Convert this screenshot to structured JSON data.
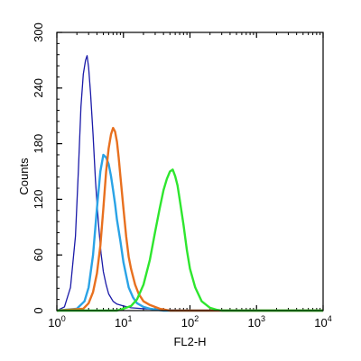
{
  "chart_data": {
    "type": "line",
    "title": "",
    "xlabel": "FL2-H",
    "ylabel": "Counts",
    "x_scale": "log",
    "xlim": [
      1,
      10000
    ],
    "ylim": [
      0,
      300
    ],
    "x_ticks": [
      {
        "base": "10",
        "exp": "0"
      },
      {
        "base": "10",
        "exp": "1"
      },
      {
        "base": "10",
        "exp": "2"
      },
      {
        "base": "10",
        "exp": "3"
      },
      {
        "base": "10",
        "exp": "4"
      }
    ],
    "y_ticks": [
      "0",
      "60",
      "120",
      "180",
      "240",
      "300"
    ],
    "grid": false,
    "legend": "none",
    "series": [
      {
        "color": "#1a1aa8",
        "x": [
          1.0,
          1.3,
          1.6,
          1.9,
          2.1,
          2.3,
          2.5,
          2.7,
          2.85,
          3.0,
          3.2,
          3.5,
          3.8,
          4.2,
          4.6,
          5.0,
          5.5,
          6.0,
          7.0,
          8.0,
          10,
          13,
          20,
          40,
          100,
          10000
        ],
        "y": [
          0,
          4,
          25,
          80,
          150,
          220,
          255,
          270,
          275,
          262,
          235,
          190,
          140,
          95,
          62,
          42,
          28,
          18,
          10,
          7,
          5,
          3,
          2,
          1,
          0,
          0
        ]
      },
      {
        "color": "#2aa3e6",
        "x": [
          1.0,
          2.0,
          2.6,
          3.0,
          3.5,
          4.0,
          4.5,
          5.0,
          5.5,
          6.0,
          6.5,
          7.0,
          7.5,
          8.0,
          9.0,
          10,
          11,
          12,
          14,
          16,
          20,
          25,
          40,
          10000
        ],
        "y": [
          0,
          2,
          10,
          25,
          60,
          110,
          150,
          168,
          165,
          158,
          145,
          130,
          115,
          98,
          75,
          52,
          38,
          25,
          14,
          8,
          4,
          2,
          0,
          0
        ]
      },
      {
        "color": "#e8701f",
        "x": [
          1.0,
          2.5,
          3.0,
          3.5,
          4.0,
          4.5,
          5.0,
          5.5,
          6.0,
          6.5,
          7.0,
          7.5,
          8.0,
          8.5,
          9.0,
          10,
          11,
          12,
          13,
          15,
          17,
          20,
          25,
          35,
          50,
          10000
        ],
        "y": [
          0,
          2,
          8,
          20,
          40,
          70,
          110,
          150,
          175,
          190,
          197,
          193,
          182,
          165,
          145,
          110,
          80,
          58,
          45,
          28,
          18,
          10,
          6,
          2,
          0,
          0
        ]
      },
      {
        "color": "#2ee62e",
        "x": [
          1.0,
          8.0,
          10,
          13,
          16,
          20,
          25,
          30,
          35,
          40,
          45,
          50,
          55,
          60,
          65,
          70,
          80,
          90,
          100,
          120,
          150,
          200,
          250,
          300,
          500,
          10000
        ],
        "y": [
          0,
          0,
          2,
          5,
          12,
          28,
          55,
          85,
          110,
          130,
          142,
          150,
          152,
          145,
          135,
          120,
          92,
          65,
          45,
          25,
          10,
          3,
          1,
          0,
          0,
          0
        ]
      }
    ]
  }
}
